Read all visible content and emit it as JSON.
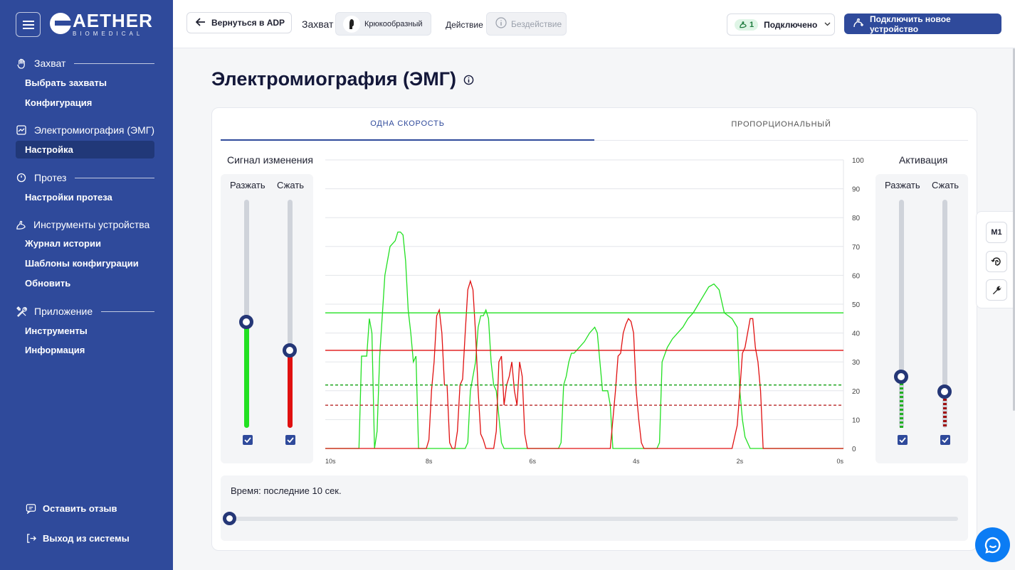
{
  "sidebar": {
    "logo": {
      "main": "AETHER",
      "sub": "BIOMEDICAL"
    },
    "sections": [
      {
        "title": "Захват",
        "icon": "hand-icon",
        "items": [
          "Выбрать захваты",
          "Конфигурация"
        ]
      },
      {
        "title": "Электромиография (ЭМГ)",
        "icon": "chart-icon",
        "items": [
          "Настройка"
        ]
      },
      {
        "title": "Протез",
        "icon": "clock-icon",
        "items": [
          "Настройки протеза"
        ]
      },
      {
        "title": "Инструменты устройства",
        "icon": "arm-icon",
        "items": [
          "Журнал истории",
          "Шаблоны конфигурации",
          "Обновить"
        ]
      },
      {
        "title": "Приложение",
        "icon": "tools-icon",
        "items": [
          "Инструменты",
          "Информация"
        ]
      }
    ],
    "active_item": "Настройка",
    "feedback": "Оставить отзыв",
    "logout": "Выход из системы"
  },
  "topbar": {
    "back": "Вернуться в ADP",
    "grip_label": "Захват",
    "grip_value": "Крюкообразный",
    "action_label": "Действие",
    "action_value": "Бездействие",
    "connection_count": "1",
    "connection_status": "Подключено",
    "new_device": "Подключить новое устройство"
  },
  "page": {
    "title": "Электромиография (ЭМГ)",
    "tabs": [
      "ОДНА СКОРОСТЬ",
      "ПРОПОРЦИОНАЛЬНЫЙ"
    ],
    "active_tab": 0
  },
  "signal_panel": {
    "title": "Сигнал изменения",
    "open_label": "Разжать",
    "close_label": "Сжать",
    "open_value": 47,
    "close_value": 34,
    "open_checked": true,
    "close_checked": true
  },
  "activation_panel": {
    "title": "Активация",
    "open_label": "Разжать",
    "close_label": "Сжать",
    "open_value": 25,
    "close_value": 20,
    "open_checked": true,
    "close_checked": true
  },
  "time": {
    "label": "Время: последние 10 сек.",
    "value": 0
  },
  "side_tools": [
    "M1",
    "rotate-hand-icon",
    "wrench-icon"
  ],
  "colors": {
    "open": "#22e022",
    "close": "#e01010",
    "primary": "#2f4a9b",
    "dark": "#253777"
  },
  "chart_data": {
    "type": "line",
    "x_ticks": [
      "10s",
      "8s",
      "6s",
      "4s",
      "2s",
      "0s"
    ],
    "y_ticks": [
      0,
      10,
      20,
      30,
      40,
      50,
      60,
      70,
      80,
      90,
      100
    ],
    "xlim": [
      10,
      0
    ],
    "ylim": [
      0,
      100
    ],
    "thresholds": [
      {
        "value": 47,
        "color": "#22e022",
        "style": "solid"
      },
      {
        "value": 34,
        "color": "#e01010",
        "style": "solid"
      },
      {
        "value": 22,
        "color": "#10a010",
        "style": "dashed"
      },
      {
        "value": 15,
        "color": "#b01010",
        "style": "dashed"
      }
    ],
    "series": [
      {
        "color": "#22e022",
        "x": [
          10,
          9.35,
          9.3,
          9.2,
          9.15,
          9.1,
          9.05,
          9.0,
          8.95,
          8.85,
          8.8,
          8.75,
          8.65,
          8.6,
          8.55,
          8.5,
          8.45,
          8.4,
          8.35,
          8.3,
          8.25,
          8.2,
          8.15,
          7.3,
          7.25,
          7.2,
          7.1,
          7.05,
          7.0,
          6.95,
          6.9,
          6.85,
          6.8,
          6.75,
          6.7,
          6.6,
          6.55,
          5.5,
          5.45,
          5.4,
          5.35,
          5.3,
          5.25,
          5.2,
          5.1,
          5.0,
          4.9,
          4.8,
          4.75,
          4.7,
          4.65,
          4.55,
          4.5,
          4.45,
          3.6,
          3.55,
          3.5,
          3.4,
          3.3,
          3.2,
          3.1,
          3.0,
          2.9,
          2.8,
          2.7,
          2.6,
          2.5,
          2.4,
          2.3,
          2.15,
          2.05,
          2.0,
          1.95,
          1.9,
          1.85,
          1.8,
          1.75,
          0
        ],
        "y": [
          0,
          0,
          32,
          32,
          45,
          40,
          0,
          6,
          32,
          60,
          65,
          70,
          72,
          75,
          75,
          74,
          65,
          48,
          40,
          30,
          32,
          0,
          0,
          0,
          2,
          20,
          30,
          42,
          46,
          46,
          48,
          45,
          30,
          22,
          20,
          2,
          0,
          0,
          2,
          22,
          25,
          30,
          33,
          33,
          35,
          37,
          40,
          42,
          40,
          30,
          20,
          20,
          15,
          0,
          0,
          2,
          30,
          35,
          38,
          40,
          42,
          45,
          47,
          50,
          53,
          56,
          57,
          55,
          47,
          45,
          42,
          20,
          10,
          4,
          2,
          0,
          0,
          0
        ]
      },
      {
        "color": "#e01010",
        "x": [
          10,
          8.1,
          8.05,
          8.0,
          7.95,
          7.9,
          7.85,
          7.8,
          7.75,
          7.7,
          7.65,
          7.6,
          7.55,
          7.5,
          7.45,
          7.4,
          7.35,
          7.3,
          7.25,
          7.2,
          7.15,
          7.1,
          7.05,
          7.0,
          6.95,
          6.9,
          6.85,
          6.75,
          6.7,
          6.65,
          6.6,
          6.55,
          6.5,
          6.45,
          6.4,
          6.35,
          6.3,
          6.25,
          6.2,
          6.15,
          6.1,
          6.05,
          6.0,
          4.5,
          4.45,
          4.4,
          4.35,
          4.3,
          4.25,
          4.2,
          4.15,
          4.1,
          4.05,
          4.0,
          3.95,
          3.9,
          3.85,
          3.8,
          3.75,
          2.15,
          2.1,
          2.05,
          2.0,
          1.95,
          1.9,
          1.85,
          1.8,
          1.75,
          1.7,
          1.65,
          1.6,
          1.55,
          1.5,
          1.45,
          1.4,
          1.35,
          1.3,
          0
        ],
        "y": [
          0,
          0,
          0,
          3,
          20,
          30,
          46,
          48,
          40,
          22,
          22,
          2,
          0,
          0,
          6,
          22,
          24,
          40,
          55,
          58,
          55,
          40,
          20,
          5,
          3,
          0,
          0,
          0,
          6,
          30,
          32,
          15,
          22,
          25,
          30,
          20,
          15,
          30,
          25,
          5,
          0,
          0,
          0,
          0,
          10,
          20,
          32,
          33,
          40,
          43,
          45,
          44,
          40,
          20,
          10,
          2,
          0,
          0,
          0,
          0,
          4,
          8,
          20,
          33,
          35,
          40,
          45,
          45,
          35,
          30,
          20,
          0,
          0,
          0,
          0,
          0,
          0,
          0
        ]
      }
    ]
  }
}
